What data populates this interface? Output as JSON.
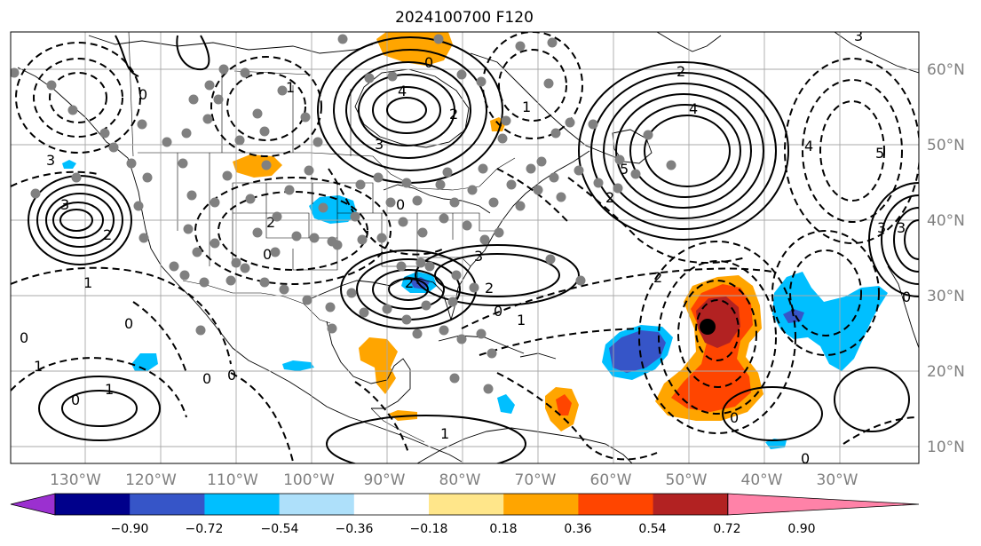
{
  "title": "2024100700 F120",
  "lon_labels": [
    "130°W",
    "120°W",
    "110°W",
    "100°W",
    "90°W",
    "80°W",
    "70°W",
    "60°W",
    "50°W",
    "40°W",
    "30°W"
  ],
  "lat_labels": [
    "60°N",
    "50°N",
    "40°N",
    "30°N",
    "20°N",
    "10°N"
  ],
  "colorbar": {
    "colors": [
      "#9b30d0",
      "#00008b",
      "#3655c8",
      "#00bfff",
      "#aee0fa",
      "#ffffff",
      "#ffe68a",
      "#ffa500",
      "#ff4500",
      "#b22222",
      "#ff82a8"
    ],
    "tick_labels": [
      "−0.90",
      "−0.72",
      "−0.54",
      "−0.36",
      "−0.18",
      "0.18",
      "0.36",
      "0.54",
      "0.72",
      "0.90"
    ],
    "extend": "both"
  },
  "contour_labels": {
    "pac_high": "3",
    "pac_2": "2",
    "pac_1": "1",
    "bc_0": "0",
    "ne_pac_3": "3",
    "hud_4": "4",
    "hud_3": "3",
    "hud_2": "2",
    "hud_0": "0",
    "atl_4": "4",
    "atl_5": "5",
    "atl_2": "2",
    "atl_n1": "1",
    "sat_2": "2",
    "sat_3": "3",
    "east_5": "5",
    "east_4": "4",
    "east_3": "3",
    "far_3": "3",
    "far_0": "0",
    "gulf_2": "2",
    "se_2": "2",
    "se_0": "0",
    "se_3": "3",
    "mid_2": "2",
    "mid_0": "0",
    "mid_1": "1",
    "ep_1": "1",
    "ep_0": "0",
    "ep_neg1": "1",
    "ep_0b": "0",
    "carib_1": "1",
    "sw_0": "0",
    "ca_0": "0",
    "trop_0": "0",
    "trop_0b": "0",
    "tx_2": "2",
    "tx_0": "0",
    "gl_1": "1",
    "west_0": "0"
  },
  "storm_marker": "tropical-cyclone-position"
}
